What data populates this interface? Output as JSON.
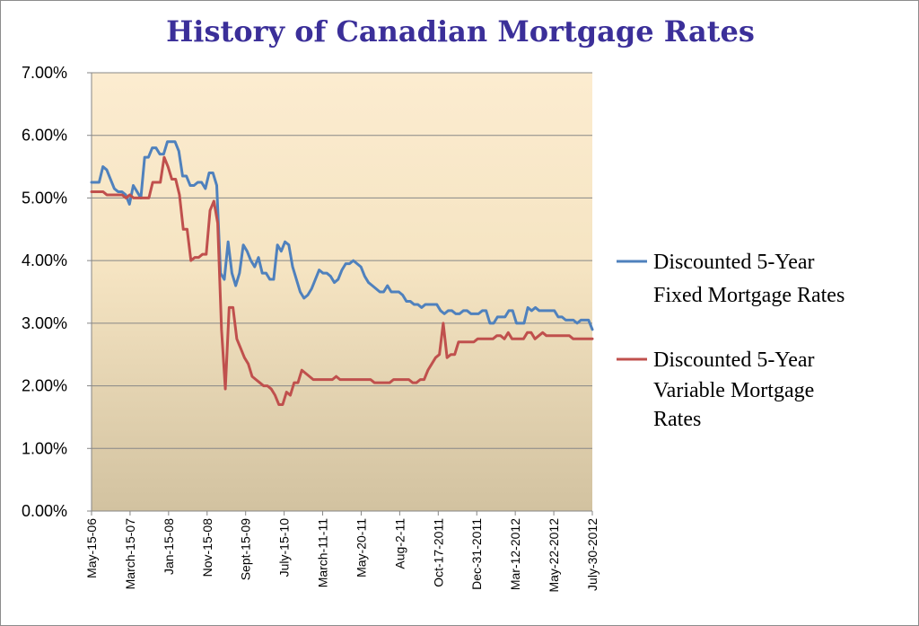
{
  "chart_data": {
    "type": "line",
    "title": "History of Canadian Mortgage Rates",
    "xlabel": "",
    "ylabel": "",
    "ylim": [
      0,
      7
    ],
    "y_ticks": [
      "0.00%",
      "1.00%",
      "2.00%",
      "3.00%",
      "4.00%",
      "5.00%",
      "6.00%",
      "7.00%"
    ],
    "x_tick_labels": [
      "May-15-06",
      "March-15-07",
      "Jan-15-08",
      "Nov-15-08",
      "Sept-15-09",
      "July-15-10",
      "March-11-11",
      "May-20-11",
      "Aug-2-11",
      "Oct-17-2011",
      "Dec-31-2011",
      "Mar-12-2012",
      "May-22-2012",
      "July-30-2012"
    ],
    "grid": "horizontal",
    "legend_position": "right",
    "series": [
      {
        "name": "Discounted 5-Year Fixed Mortgage Rates",
        "color": "#4f81bd",
        "values": [
          5.25,
          5.25,
          5.25,
          5.5,
          5.45,
          5.3,
          5.15,
          5.1,
          5.1,
          5.05,
          4.9,
          5.2,
          5.1,
          5.0,
          5.65,
          5.65,
          5.8,
          5.8,
          5.7,
          5.7,
          5.9,
          5.9,
          5.9,
          5.75,
          5.35,
          5.35,
          5.2,
          5.2,
          5.25,
          5.25,
          5.15,
          5.4,
          5.4,
          5.2,
          3.8,
          3.7,
          4.3,
          3.8,
          3.6,
          3.8,
          4.25,
          4.15,
          4.0,
          3.9,
          4.05,
          3.8,
          3.8,
          3.7,
          3.7,
          4.25,
          4.15,
          4.3,
          4.25,
          3.9,
          3.7,
          3.5,
          3.4,
          3.45,
          3.55,
          3.7,
          3.85,
          3.8,
          3.8,
          3.75,
          3.65,
          3.7,
          3.85,
          3.95,
          3.95,
          4.0,
          3.95,
          3.9,
          3.75,
          3.65,
          3.6,
          3.55,
          3.5,
          3.5,
          3.6,
          3.5,
          3.5,
          3.5,
          3.45,
          3.35,
          3.35,
          3.3,
          3.3,
          3.25,
          3.3,
          3.3,
          3.3,
          3.3,
          3.2,
          3.15,
          3.2,
          3.2,
          3.15,
          3.15,
          3.2,
          3.2,
          3.15,
          3.15,
          3.15,
          3.2,
          3.2,
          3.0,
          3.0,
          3.1,
          3.1,
          3.1,
          3.2,
          3.2,
          3.0,
          3.0,
          3.0,
          3.25,
          3.2,
          3.25,
          3.2,
          3.2,
          3.2,
          3.2,
          3.2,
          3.1,
          3.1,
          3.05,
          3.05,
          3.05,
          3.0,
          3.05,
          3.05,
          3.05,
          2.9
        ]
      },
      {
        "name": "Discounted 5-Year Variable Mortgage Rates",
        "color": "#c0504d",
        "values": [
          5.1,
          5.1,
          5.1,
          5.1,
          5.05,
          5.05,
          5.05,
          5.05,
          5.05,
          5.0,
          5.05,
          5.0,
          5.0,
          5.0,
          5.0,
          5.0,
          5.25,
          5.25,
          5.25,
          5.65,
          5.5,
          5.3,
          5.3,
          5.05,
          4.5,
          4.5,
          4.0,
          4.05,
          4.05,
          4.1,
          4.1,
          4.8,
          4.95,
          4.6,
          2.9,
          1.95,
          3.25,
          3.25,
          2.75,
          2.6,
          2.45,
          2.35,
          2.15,
          2.1,
          2.05,
          2.0,
          2.0,
          1.95,
          1.85,
          1.7,
          1.7,
          1.9,
          1.85,
          2.05,
          2.05,
          2.25,
          2.2,
          2.15,
          2.1,
          2.1,
          2.1,
          2.1,
          2.1,
          2.1,
          2.15,
          2.1,
          2.1,
          2.1,
          2.1,
          2.1,
          2.1,
          2.1,
          2.1,
          2.1,
          2.05,
          2.05,
          2.05,
          2.05,
          2.05,
          2.1,
          2.1,
          2.1,
          2.1,
          2.1,
          2.05,
          2.05,
          2.1,
          2.1,
          2.25,
          2.35,
          2.45,
          2.5,
          3.0,
          2.45,
          2.5,
          2.5,
          2.7,
          2.7,
          2.7,
          2.7,
          2.7,
          2.75,
          2.75,
          2.75,
          2.75,
          2.75,
          2.8,
          2.8,
          2.75,
          2.85,
          2.75,
          2.75,
          2.75,
          2.75,
          2.85,
          2.85,
          2.75,
          2.8,
          2.85,
          2.8,
          2.8,
          2.8,
          2.8,
          2.8,
          2.8,
          2.8,
          2.75,
          2.75,
          2.75,
          2.75,
          2.75,
          2.75
        ]
      }
    ]
  }
}
